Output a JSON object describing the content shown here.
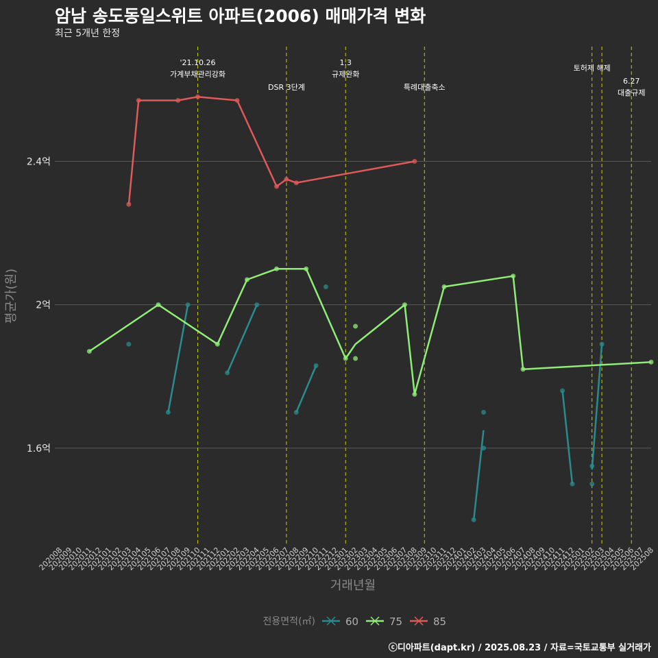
{
  "title": "암남 송도동일스위트 아파트(2006) 매매가격 변화",
  "subtitle": "최근 5개년 한정",
  "caption": "ⓒ디아파트(dapt.kr) / 2025.08.23 / 자료=국토교통부 실거래가",
  "chart_data": {
    "type": "line",
    "xlabel": "거래년월",
    "ylabel": "평균가(원)",
    "x_ticks": [
      "202008",
      "202009",
      "202010",
      "202011",
      "202012",
      "202101",
      "202102",
      "202103",
      "202104",
      "202105",
      "202106",
      "202107",
      "202108",
      "202109",
      "202110",
      "202111",
      "202112",
      "202201",
      "202202",
      "202203",
      "202204",
      "202205",
      "202206",
      "202207",
      "202208",
      "202209",
      "202210",
      "202211",
      "202212",
      "202301",
      "202302",
      "202303",
      "202304",
      "202305",
      "202306",
      "202307",
      "202308",
      "202309",
      "202310",
      "202311",
      "202312",
      "202401",
      "202402",
      "202403",
      "202404",
      "202405",
      "202406",
      "202407",
      "202408",
      "202409",
      "202410",
      "202411",
      "202412",
      "202501",
      "202502",
      "202503",
      "202504",
      "202505",
      "202506",
      "202507",
      "202508"
    ],
    "y_ticks": [
      {
        "value": 1.6,
        "label": "1.6억"
      },
      {
        "value": 2.0,
        "label": "2억"
      },
      {
        "value": 2.4,
        "label": "2.4억"
      }
    ],
    "ylim": [
      1.33,
      2.72
    ],
    "legend_title": "전용면적(㎡)",
    "legend_position": "bottom",
    "grid": "horizontal",
    "series": [
      {
        "name": "60",
        "color": "#2a8c8c",
        "lines": [
          [
            [
              "202107",
              1.7
            ],
            [
              "202109",
              2.0
            ]
          ],
          [
            [
              "202201",
              1.81
            ],
            [
              "202204",
              2.0
            ]
          ],
          [
            [
              "202208",
              1.7
            ],
            [
              "202210",
              1.83
            ]
          ],
          [
            [
              "202402",
              1.4
            ],
            [
              "202403",
              1.65
            ]
          ],
          [
            [
              "202411",
              1.76
            ],
            [
              "202412",
              1.5
            ]
          ],
          [
            [
              "202502",
              1.54
            ],
            [
              "202503",
              1.89
            ]
          ]
        ],
        "points": [
          [
            "202103",
            1.89
          ],
          [
            "202107",
            1.7
          ],
          [
            "202109",
            2.0
          ],
          [
            "202201",
            1.81
          ],
          [
            "202204",
            2.0
          ],
          [
            "202208",
            1.7
          ],
          [
            "202210",
            1.83
          ],
          [
            "202211",
            2.05
          ],
          [
            "202402",
            1.4
          ],
          [
            "202403",
            1.7
          ],
          [
            "202403",
            1.6
          ],
          [
            "202411",
            1.76
          ],
          [
            "202412",
            1.5
          ],
          [
            "202502",
            1.55
          ],
          [
            "202502",
            1.5
          ],
          [
            "202503",
            1.89
          ]
        ]
      },
      {
        "name": "75",
        "color": "#90ee78",
        "lines": [
          [
            [
              "202011",
              1.87
            ],
            [
              "202106",
              2.0
            ],
            [
              "202112",
              1.89
            ],
            [
              "202203",
              2.07
            ],
            [
              "202206",
              2.1
            ],
            [
              "202209",
              2.1
            ],
            [
              "202301",
              1.85
            ],
            [
              "202302",
              1.89
            ],
            [
              "202307",
              2.0
            ],
            [
              "202308",
              1.75
            ],
            [
              "202311",
              2.05
            ],
            [
              "202406",
              2.08
            ],
            [
              "202407",
              1.82
            ],
            [
              "202508",
              1.84
            ]
          ]
        ],
        "points": [
          [
            "202011",
            1.87
          ],
          [
            "202106",
            2.0
          ],
          [
            "202112",
            1.89
          ],
          [
            "202203",
            2.07
          ],
          [
            "202206",
            2.1
          ],
          [
            "202209",
            2.1
          ],
          [
            "202301",
            1.85
          ],
          [
            "202302",
            1.94
          ],
          [
            "202302",
            1.85
          ],
          [
            "202307",
            2.0
          ],
          [
            "202308",
            1.75
          ],
          [
            "202311",
            2.05
          ],
          [
            "202406",
            2.08
          ],
          [
            "202407",
            1.82
          ],
          [
            "202508",
            1.84
          ]
        ]
      },
      {
        "name": "85",
        "color": "#e05a5a",
        "lines": [
          [
            [
              "202103",
              2.28
            ],
            [
              "202104",
              2.57
            ],
            [
              "202108",
              2.57
            ],
            [
              "202110",
              2.58
            ],
            [
              "202202",
              2.57
            ],
            [
              "202206",
              2.33
            ],
            [
              "202207",
              2.35
            ],
            [
              "202208",
              2.34
            ],
            [
              "202308",
              2.4
            ]
          ]
        ],
        "points": [
          [
            "202103",
            2.28
          ],
          [
            "202104",
            2.57
          ],
          [
            "202108",
            2.57
          ],
          [
            "202110",
            2.58
          ],
          [
            "202202",
            2.57
          ],
          [
            "202206",
            2.33
          ],
          [
            "202207",
            2.35
          ],
          [
            "202208",
            2.34
          ],
          [
            "202308",
            2.4
          ]
        ]
      }
    ],
    "events": [
      {
        "x": "202110",
        "lines": [
          "'21.10.26",
          "가계부채관리강화"
        ]
      },
      {
        "x": "202207",
        "lines": [
          "DSR 3단계"
        ]
      },
      {
        "x": "202301",
        "lines": [
          "1.3",
          "규제완화"
        ]
      },
      {
        "x": "202309",
        "lines": [
          "특례대출축소"
        ]
      },
      {
        "x": "202502",
        "lines": [
          "토허제 해제"
        ]
      },
      {
        "x": "202503",
        "lines": []
      },
      {
        "x": "202506",
        "lines": [
          "6.27",
          "대출규제"
        ]
      }
    ],
    "colors": {
      "background": "#2b2b2b",
      "grid": "#5a5a5a",
      "event_line": "#cccc00",
      "text": "#ffffff",
      "axis_title": "#8a8a8a"
    }
  }
}
